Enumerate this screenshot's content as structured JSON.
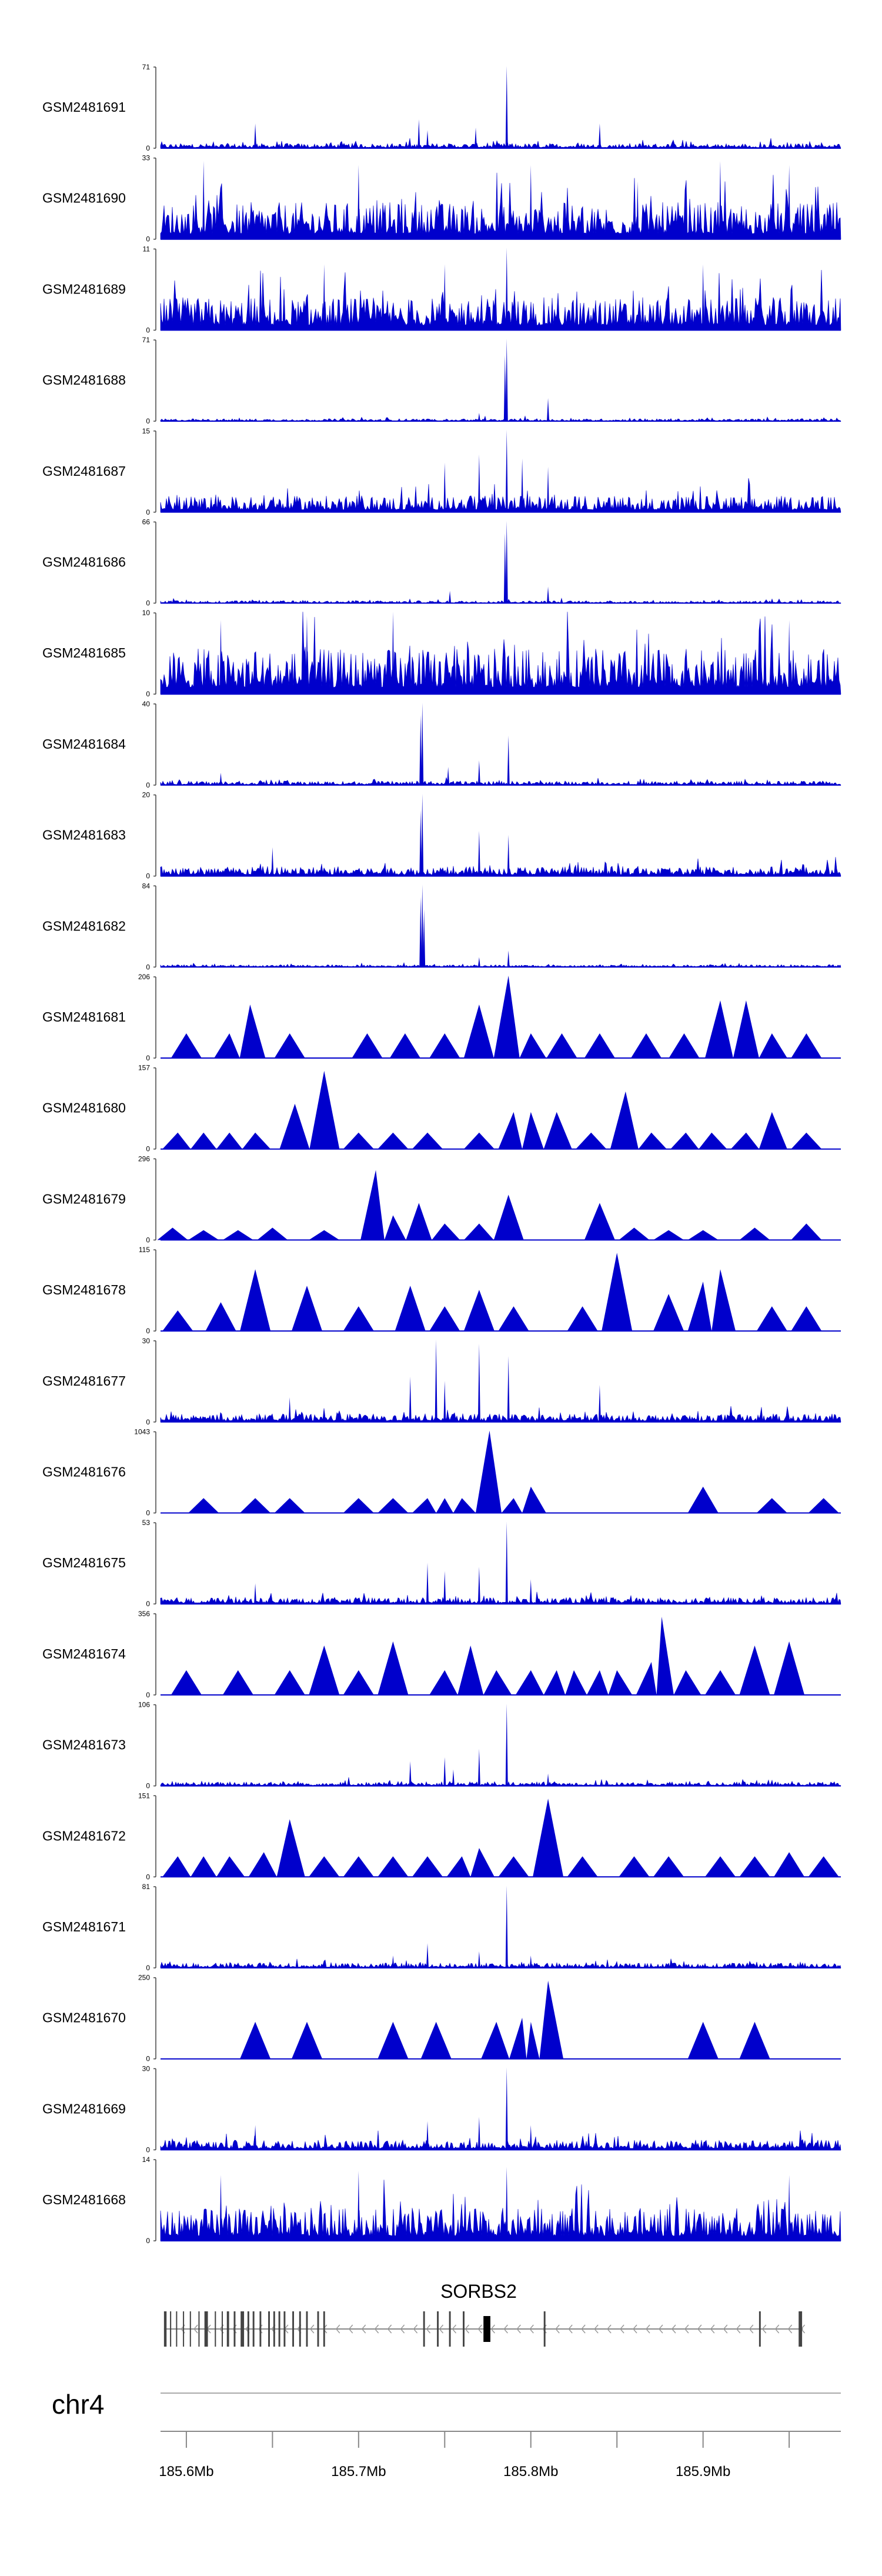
{
  "chart_data": {
    "type": "area",
    "title": "",
    "chromosome": "chr4",
    "x_unit": "Mb",
    "xlim": [
      185.585,
      185.98
    ],
    "x_ticks": [
      185.6,
      185.65,
      185.7,
      185.75,
      185.8,
      185.85,
      185.9,
      185.95
    ],
    "x_tick_labels": [
      "185.6Mb",
      "185.7Mb",
      "185.8Mb",
      "185.9Mb"
    ],
    "x_tick_label_positions": [
      185.6,
      185.7,
      185.8,
      185.9
    ],
    "series_color": "#0000cc",
    "tracks": [
      {
        "name": "GSM2481691",
        "ymax": "71",
        "ymin": "0",
        "style": "dense",
        "noise": 0.06,
        "peaks": [
          [
            185.786,
            1.0
          ],
          [
            185.735,
            0.35
          ],
          [
            185.64,
            0.3
          ],
          [
            185.84,
            0.3
          ],
          [
            185.768,
            0.25
          ],
          [
            185.74,
            0.22
          ]
        ]
      },
      {
        "name": "GSM2481690",
        "ymax": "33",
        "ymin": "0",
        "style": "dense",
        "noise": 0.45,
        "peaks": [
          [
            185.61,
            0.95
          ],
          [
            185.7,
            0.9
          ],
          [
            185.8,
            0.9
          ],
          [
            185.862,
            0.7
          ],
          [
            185.91,
            0.95
          ],
          [
            185.95,
            0.9
          ]
        ]
      },
      {
        "name": "GSM2481689",
        "ymax": "11",
        "ymin": "0",
        "style": "dense",
        "noise": 0.4,
        "peaks": [
          [
            185.786,
            1.0
          ],
          [
            185.75,
            0.8
          ],
          [
            185.68,
            0.8
          ],
          [
            185.9,
            0.8
          ]
        ]
      },
      {
        "name": "GSM2481688",
        "ymax": "71",
        "ymin": "0",
        "style": "dense",
        "noise": 0.03,
        "peaks": [
          [
            185.786,
            1.0
          ],
          [
            185.785,
            0.8
          ],
          [
            185.81,
            0.28
          ],
          [
            185.77,
            0.1
          ]
        ]
      },
      {
        "name": "GSM2481687",
        "ymax": "15",
        "ymin": "0",
        "style": "dense",
        "noise": 0.2,
        "peaks": [
          [
            185.786,
            1.0
          ],
          [
            185.77,
            0.7
          ],
          [
            185.795,
            0.65
          ],
          [
            185.75,
            0.6
          ],
          [
            185.81,
            0.55
          ]
        ]
      },
      {
        "name": "GSM2481686",
        "ymax": "66",
        "ymin": "0",
        "style": "dense",
        "noise": 0.03,
        "peaks": [
          [
            185.786,
            1.0
          ],
          [
            185.785,
            0.85
          ],
          [
            185.81,
            0.2
          ],
          [
            185.753,
            0.15
          ]
        ]
      },
      {
        "name": "GSM2481685",
        "ymax": "10",
        "ymin": "0",
        "style": "dense",
        "noise": 0.55,
        "peaks": [
          [
            185.72,
            1.0
          ],
          [
            185.67,
            0.95
          ],
          [
            185.62,
            0.9
          ],
          [
            185.95,
            0.9
          ]
        ]
      },
      {
        "name": "GSM2481684",
        "ymax": "40",
        "ymin": "0",
        "style": "dense",
        "noise": 0.05,
        "peaks": [
          [
            185.737,
            1.0
          ],
          [
            185.736,
            0.85
          ],
          [
            185.787,
            0.6
          ],
          [
            185.77,
            0.3
          ],
          [
            185.752,
            0.22
          ],
          [
            185.62,
            0.15
          ]
        ]
      },
      {
        "name": "GSM2481683",
        "ymax": "20",
        "ymin": "0",
        "style": "dense",
        "noise": 0.12,
        "peaks": [
          [
            185.737,
            1.0
          ],
          [
            185.736,
            0.8
          ],
          [
            185.77,
            0.55
          ],
          [
            185.787,
            0.5
          ],
          [
            185.65,
            0.35
          ]
        ]
      },
      {
        "name": "GSM2481682",
        "ymax": "84",
        "ymin": "0",
        "style": "dense",
        "noise": 0.03,
        "peaks": [
          [
            185.737,
            1.0
          ],
          [
            185.736,
            0.85
          ],
          [
            185.738,
            0.7
          ],
          [
            185.787,
            0.2
          ],
          [
            185.77,
            0.12
          ]
        ]
      },
      {
        "name": "GSM2481681",
        "ymax": "206",
        "ymin": "0",
        "style": "sparse",
        "peaks": [
          [
            185.6,
            0.3
          ],
          [
            185.625,
            0.3
          ],
          [
            185.637,
            0.65
          ],
          [
            185.66,
            0.3
          ],
          [
            185.705,
            0.3
          ],
          [
            185.727,
            0.3
          ],
          [
            185.75,
            0.3
          ],
          [
            185.77,
            0.65
          ],
          [
            185.787,
            1.0
          ],
          [
            185.8,
            0.3
          ],
          [
            185.818,
            0.3
          ],
          [
            185.84,
            0.3
          ],
          [
            185.867,
            0.3
          ],
          [
            185.889,
            0.3
          ],
          [
            185.91,
            0.7
          ],
          [
            185.925,
            0.7
          ],
          [
            185.94,
            0.3
          ],
          [
            185.96,
            0.3
          ]
        ]
      },
      {
        "name": "GSM2481680",
        "ymax": "157",
        "ymin": "0",
        "style": "sparse",
        "peaks": [
          [
            185.595,
            0.2
          ],
          [
            185.61,
            0.2
          ],
          [
            185.625,
            0.2
          ],
          [
            185.64,
            0.2
          ],
          [
            185.663,
            0.55
          ],
          [
            185.68,
            0.95
          ],
          [
            185.7,
            0.2
          ],
          [
            185.72,
            0.2
          ],
          [
            185.74,
            0.2
          ],
          [
            185.77,
            0.2
          ],
          [
            185.79,
            0.45
          ],
          [
            185.8,
            0.45
          ],
          [
            185.815,
            0.45
          ],
          [
            185.835,
            0.2
          ],
          [
            185.855,
            0.7
          ],
          [
            185.87,
            0.2
          ],
          [
            185.89,
            0.2
          ],
          [
            185.905,
            0.2
          ],
          [
            185.925,
            0.2
          ],
          [
            185.94,
            0.45
          ],
          [
            185.96,
            0.2
          ]
        ]
      },
      {
        "name": "GSM2481679",
        "ymax": "296",
        "ymin": "0",
        "style": "sparse",
        "peaks": [
          [
            185.592,
            0.15
          ],
          [
            185.61,
            0.12
          ],
          [
            185.63,
            0.12
          ],
          [
            185.65,
            0.15
          ],
          [
            185.68,
            0.12
          ],
          [
            185.71,
            0.85
          ],
          [
            185.72,
            0.3
          ],
          [
            185.735,
            0.45
          ],
          [
            185.75,
            0.2
          ],
          [
            185.77,
            0.2
          ],
          [
            185.787,
            0.55
          ],
          [
            185.84,
            0.45
          ],
          [
            185.86,
            0.15
          ],
          [
            185.88,
            0.12
          ],
          [
            185.9,
            0.12
          ],
          [
            185.93,
            0.15
          ],
          [
            185.96,
            0.2
          ]
        ]
      },
      {
        "name": "GSM2481678",
        "ymax": "115",
        "ymin": "0",
        "style": "sparse",
        "peaks": [
          [
            185.595,
            0.25
          ],
          [
            185.62,
            0.35
          ],
          [
            185.64,
            0.75
          ],
          [
            185.67,
            0.55
          ],
          [
            185.7,
            0.3
          ],
          [
            185.73,
            0.55
          ],
          [
            185.75,
            0.3
          ],
          [
            185.77,
            0.5
          ],
          [
            185.79,
            0.3
          ],
          [
            185.83,
            0.3
          ],
          [
            185.85,
            0.95
          ],
          [
            185.88,
            0.45
          ],
          [
            185.9,
            0.6
          ],
          [
            185.91,
            0.75
          ],
          [
            185.94,
            0.3
          ],
          [
            185.96,
            0.3
          ]
        ]
      },
      {
        "name": "GSM2481677",
        "ymax": "30",
        "ymin": "0",
        "style": "dense",
        "noise": 0.1,
        "peaks": [
          [
            185.745,
            1.0
          ],
          [
            185.77,
            0.95
          ],
          [
            185.787,
            0.8
          ],
          [
            185.73,
            0.55
          ],
          [
            185.84,
            0.45
          ],
          [
            185.75,
            0.5
          ],
          [
            185.66,
            0.3
          ]
        ]
      },
      {
        "name": "GSM2481676",
        "ymax": "1043",
        "ymin": "0",
        "style": "sparse",
        "peaks": [
          [
            185.61,
            0.18
          ],
          [
            185.64,
            0.18
          ],
          [
            185.66,
            0.18
          ],
          [
            185.7,
            0.18
          ],
          [
            185.72,
            0.18
          ],
          [
            185.74,
            0.18
          ],
          [
            185.75,
            0.18
          ],
          [
            185.76,
            0.18
          ],
          [
            185.776,
            1.0
          ],
          [
            185.79,
            0.18
          ],
          [
            185.8,
            0.32
          ],
          [
            185.9,
            0.32
          ],
          [
            185.94,
            0.18
          ],
          [
            185.97,
            0.18
          ]
        ]
      },
      {
        "name": "GSM2481675",
        "ymax": "53",
        "ymin": "0",
        "style": "dense",
        "noise": 0.08,
        "peaks": [
          [
            185.786,
            1.0
          ],
          [
            185.77,
            0.45
          ],
          [
            185.74,
            0.5
          ],
          [
            185.75,
            0.4
          ],
          [
            185.8,
            0.3
          ],
          [
            185.64,
            0.25
          ]
        ]
      },
      {
        "name": "GSM2481674",
        "ymax": "356",
        "ymin": "0",
        "style": "sparse",
        "peaks": [
          [
            185.6,
            0.3
          ],
          [
            185.63,
            0.3
          ],
          [
            185.66,
            0.3
          ],
          [
            185.68,
            0.6
          ],
          [
            185.7,
            0.3
          ],
          [
            185.72,
            0.65
          ],
          [
            185.75,
            0.3
          ],
          [
            185.765,
            0.6
          ],
          [
            185.78,
            0.3
          ],
          [
            185.8,
            0.3
          ],
          [
            185.815,
            0.3
          ],
          [
            185.825,
            0.3
          ],
          [
            185.84,
            0.3
          ],
          [
            185.85,
            0.3
          ],
          [
            185.87,
            0.4
          ],
          [
            185.876,
            0.95
          ],
          [
            185.89,
            0.3
          ],
          [
            185.91,
            0.3
          ],
          [
            185.93,
            0.6
          ],
          [
            185.95,
            0.65
          ]
        ]
      },
      {
        "name": "GSM2481673",
        "ymax": "106",
        "ymin": "0",
        "style": "dense",
        "noise": 0.05,
        "peaks": [
          [
            185.786,
            1.0
          ],
          [
            185.77,
            0.45
          ],
          [
            185.75,
            0.35
          ],
          [
            185.73,
            0.3
          ],
          [
            185.755,
            0.2
          ],
          [
            185.81,
            0.15
          ]
        ]
      },
      {
        "name": "GSM2481672",
        "ymax": "151",
        "ymin": "0",
        "style": "sparse",
        "peaks": [
          [
            185.595,
            0.25
          ],
          [
            185.61,
            0.25
          ],
          [
            185.625,
            0.25
          ],
          [
            185.645,
            0.3
          ],
          [
            185.66,
            0.7
          ],
          [
            185.68,
            0.25
          ],
          [
            185.7,
            0.25
          ],
          [
            185.72,
            0.25
          ],
          [
            185.74,
            0.25
          ],
          [
            185.76,
            0.25
          ],
          [
            185.77,
            0.35
          ],
          [
            185.79,
            0.25
          ],
          [
            185.81,
            0.95
          ],
          [
            185.83,
            0.25
          ],
          [
            185.86,
            0.25
          ],
          [
            185.88,
            0.25
          ],
          [
            185.91,
            0.25
          ],
          [
            185.93,
            0.25
          ],
          [
            185.95,
            0.3
          ],
          [
            185.97,
            0.25
          ]
        ]
      },
      {
        "name": "GSM2481671",
        "ymax": "81",
        "ymin": "0",
        "style": "dense",
        "noise": 0.06,
        "peaks": [
          [
            185.786,
            1.0
          ],
          [
            185.74,
            0.3
          ],
          [
            185.77,
            0.2
          ],
          [
            185.8,
            0.15
          ],
          [
            185.72,
            0.15
          ]
        ]
      },
      {
        "name": "GSM2481670",
        "ymax": "250",
        "ymin": "0",
        "style": "sparse",
        "peaks": [
          [
            185.64,
            0.45
          ],
          [
            185.67,
            0.45
          ],
          [
            185.72,
            0.45
          ],
          [
            185.745,
            0.45
          ],
          [
            185.78,
            0.45
          ],
          [
            185.795,
            0.5
          ],
          [
            185.8,
            0.45
          ],
          [
            185.81,
            0.95
          ],
          [
            185.9,
            0.45
          ],
          [
            185.93,
            0.45
          ]
        ]
      },
      {
        "name": "GSM2481669",
        "ymax": "30",
        "ymin": "0",
        "style": "dense",
        "noise": 0.12,
        "peaks": [
          [
            185.786,
            1.0
          ],
          [
            185.77,
            0.4
          ],
          [
            185.74,
            0.35
          ],
          [
            185.8,
            0.3
          ],
          [
            185.64,
            0.3
          ]
        ]
      },
      {
        "name": "GSM2481668",
        "ymax": "14",
        "ymin": "0",
        "style": "dense",
        "noise": 0.4,
        "peaks": [
          [
            185.786,
            0.9
          ],
          [
            185.7,
            0.85
          ],
          [
            185.62,
            0.8
          ],
          [
            185.95,
            0.8
          ]
        ]
      }
    ],
    "gene": {
      "name": "SORBS2",
      "start": 185.587,
      "end": 185.958,
      "strand": "-",
      "exons": [
        [
          185.587,
          185.5885
        ],
        [
          185.5905,
          185.5912
        ],
        [
          185.594,
          185.5945
        ],
        [
          185.598,
          185.5985
        ],
        [
          185.602,
          185.6025
        ],
        [
          185.607,
          185.6075
        ],
        [
          185.6105,
          185.6125
        ],
        [
          185.6165,
          185.6172
        ],
        [
          185.6205,
          185.6212
        ],
        [
          185.6235,
          185.6248
        ],
        [
          185.6275,
          185.6285
        ],
        [
          185.6315,
          185.6335
        ],
        [
          185.6355,
          185.6365
        ],
        [
          185.6385,
          185.6395
        ],
        [
          185.6425,
          185.6435
        ],
        [
          185.6475,
          185.6485
        ],
        [
          185.6505,
          185.6515
        ],
        [
          185.6535,
          185.6545
        ],
        [
          185.6565,
          185.6575
        ],
        [
          185.6615,
          185.6625
        ],
        [
          185.6655,
          185.6665
        ],
        [
          185.6695,
          185.6705
        ],
        [
          185.676,
          185.677
        ],
        [
          185.6795,
          185.6805
        ],
        [
          185.7375,
          185.7385
        ],
        [
          185.7455,
          185.7465
        ],
        [
          185.7525,
          185.7535
        ],
        [
          185.7605,
          185.7615
        ],
        [
          185.7725,
          185.7765
        ],
        [
          185.8075,
          185.8085
        ],
        [
          185.9325,
          185.9335
        ],
        [
          185.9555,
          185.9575
        ]
      ]
    }
  }
}
